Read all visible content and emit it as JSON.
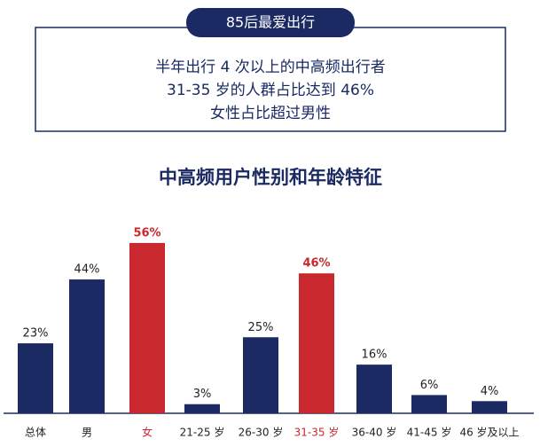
{
  "header": {
    "badge": "85后最爱出行",
    "lines": [
      "半年出行 4 次以上的中高频出行者",
      "31-35 岁的人群占比达到 46%",
      "女性占比超过男性"
    ]
  },
  "chart_data": {
    "type": "bar",
    "title": "中高频用户性别和年龄特征",
    "categories": [
      "总体",
      "男",
      "女",
      "21-25 岁",
      "26-30 岁",
      "31-35 岁",
      "36-40 岁",
      "41-45 岁",
      "46 岁及以上"
    ],
    "values": [
      23,
      44,
      56,
      3,
      25,
      46,
      16,
      6,
      4
    ],
    "value_labels": [
      "23%",
      "44%",
      "56%",
      "3%",
      "25%",
      "46%",
      "16%",
      "6%",
      "4%"
    ],
    "color": "#1b2a63",
    "colors": [
      "#1b2a63",
      "#1b2a63",
      "#c9282f",
      "#1b2a63",
      "#1b2a63",
      "#c9282f",
      "#1b2a63",
      "#1b2a63",
      "#1b2a63"
    ]
  }
}
